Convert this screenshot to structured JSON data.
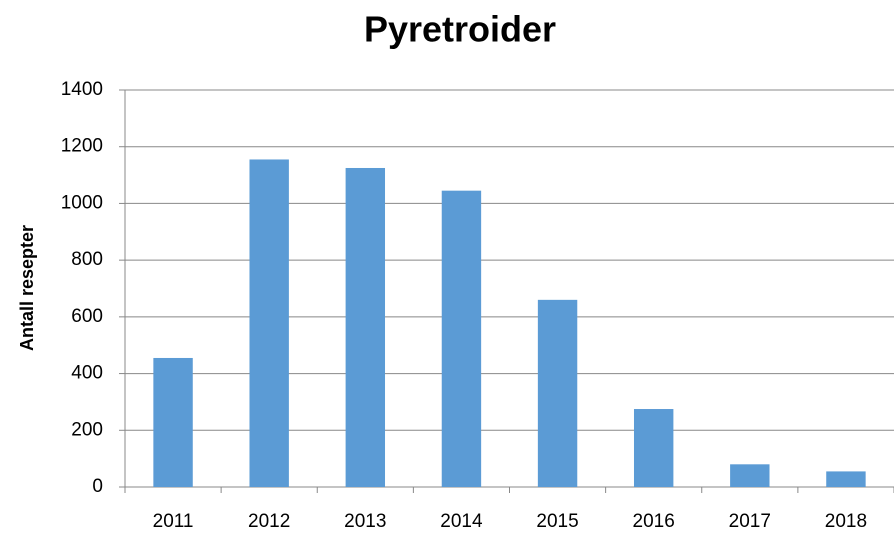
{
  "chart_data": {
    "type": "bar",
    "title": "Pyretroider",
    "y_label": "Antall resepter",
    "categories": [
      "2011",
      "2012",
      "2013",
      "2014",
      "2015",
      "2016",
      "2017",
      "2018"
    ],
    "values": [
      455,
      1155,
      1125,
      1045,
      660,
      275,
      80,
      55
    ],
    "color": "#5b9bd5",
    "ylim": [
      0,
      1400
    ],
    "yticks": [
      0,
      200,
      400,
      600,
      800,
      1000,
      1200,
      1400
    ],
    "grid": true
  }
}
